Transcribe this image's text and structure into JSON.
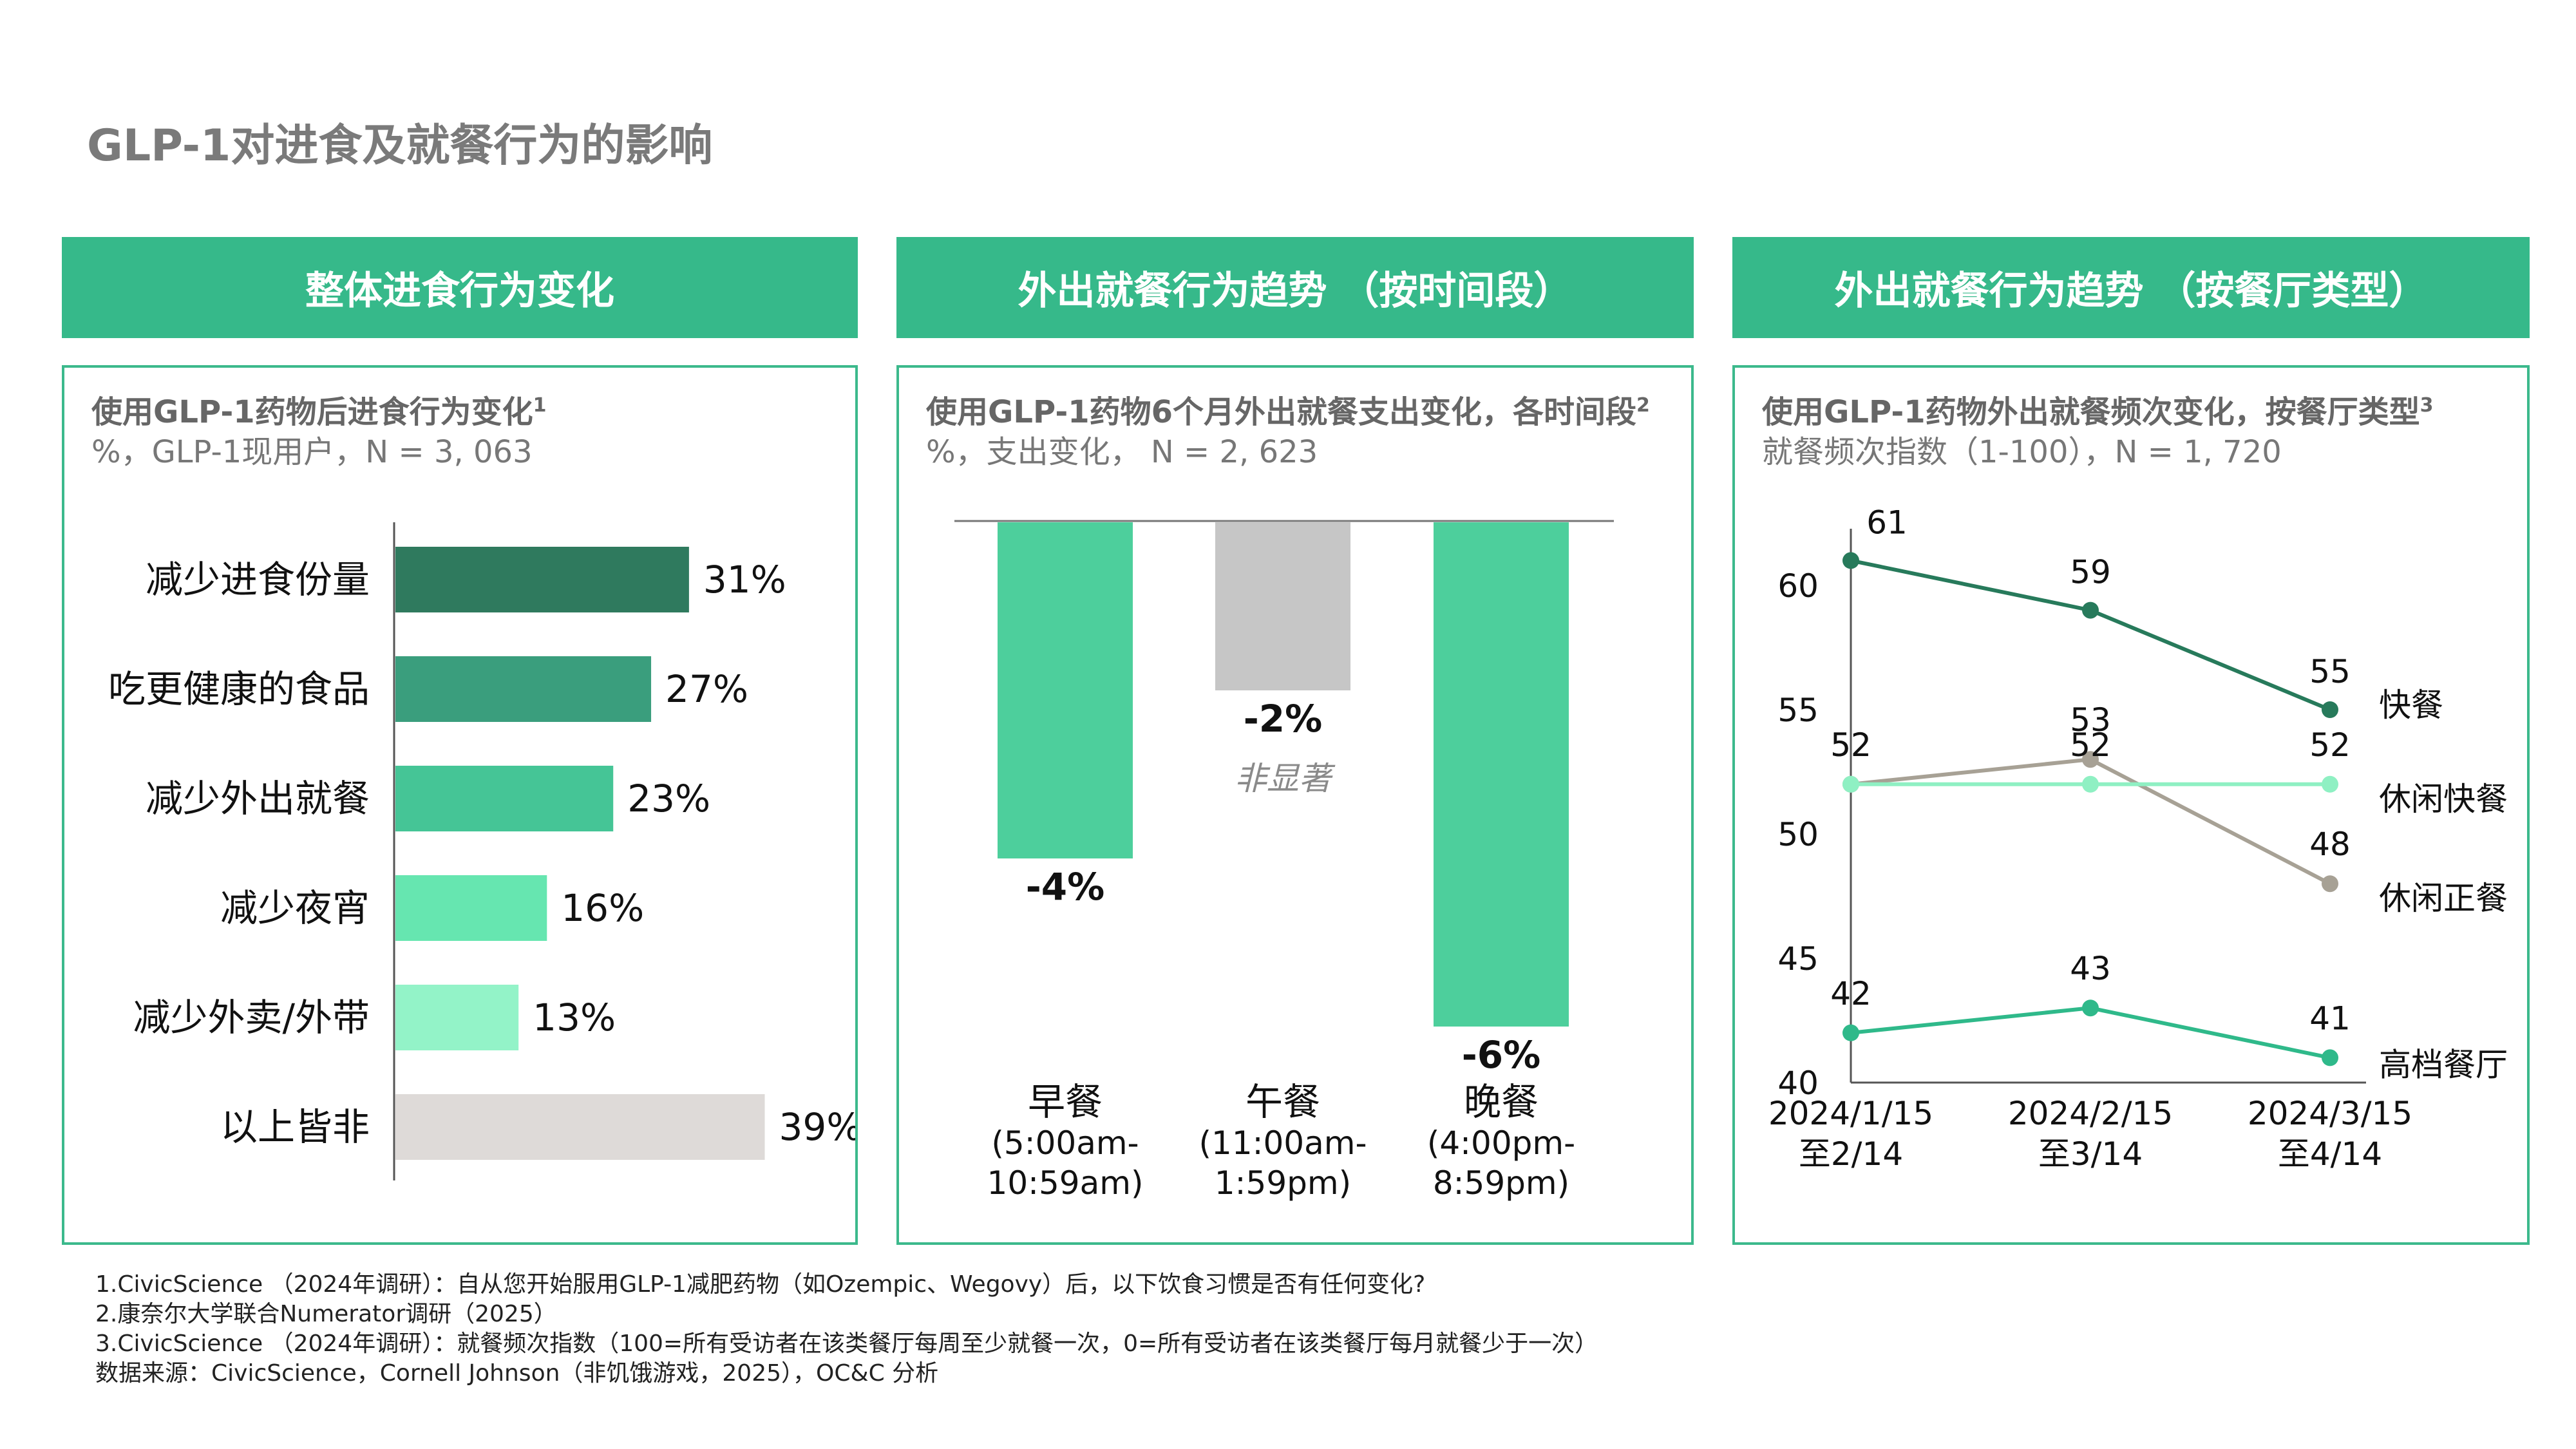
{
  "page_title": "GLP-1对进食及就餐行为的影响",
  "headers": [
    "整体进食行为变化",
    "外出就餐行为趋势 （按时间段）",
    "外出就餐行为趋势 （按餐厅类型）"
  ],
  "panels": [
    {
      "subtitle": "使用GLP-1药物后进食行为变化",
      "sup": "1",
      "subtitle2": "%，GLP-1现用户，N = 3, 063"
    },
    {
      "subtitle": "使用GLP-1药物6个月外出就餐支出变化，各时间段",
      "sup": "2",
      "subtitle2": "%，支出变化， N = 2, 623"
    },
    {
      "subtitle": "使用GLP-1药物外出就餐频次变化，按餐厅类型",
      "sup": "3",
      "subtitle2": "就餐频次指数（1-100），N = 1, 720"
    }
  ],
  "chart_data": [
    {
      "type": "bar",
      "orientation": "horizontal",
      "categories": [
        "减少进食份量",
        "吃更健康的食品",
        "减少外出就餐",
        "减少夜宵",
        "减少外卖/外带",
        "以上皆非"
      ],
      "values": [
        31,
        27,
        23,
        16,
        13,
        39
      ],
      "labels": [
        "31%",
        "27%",
        "23%",
        "16%",
        "13%",
        "39%"
      ],
      "colors": [
        "#2f7a5e",
        "#3a9e7d",
        "#45c596",
        "#66e6b0",
        "#93f3c8",
        "#dedad8"
      ]
    },
    {
      "type": "bar",
      "categories": [
        {
          "name": "早餐",
          "sub": [
            "(5:00am-",
            "10:59am)"
          ]
        },
        {
          "name": "午餐",
          "sub": [
            "(11:00am-",
            "1:59pm)"
          ]
        },
        {
          "name": "晚餐",
          "sub": [
            "(4:00pm-",
            "8:59pm)"
          ]
        }
      ],
      "values": [
        -4,
        -2,
        -6
      ],
      "labels": [
        "-4%",
        "-2%",
        "-6%"
      ],
      "colors": [
        "#4dcf9c",
        "#c6c6c6",
        "#4dcf9c"
      ],
      "annotation": "非显著",
      "ylim": [
        -6,
        0
      ]
    },
    {
      "type": "line",
      "categories": [
        [
          "2024/1/15",
          "至2/14"
        ],
        [
          "2024/2/15",
          "至3/14"
        ],
        [
          "2024/3/15",
          "至4/14"
        ]
      ],
      "yticks": [
        40,
        45,
        50,
        55,
        60
      ],
      "ylim": [
        40,
        62
      ],
      "series": [
        {
          "name": "快餐",
          "values": [
            61,
            59,
            55
          ],
          "color": "#277a5b"
        },
        {
          "name": "休闲快餐",
          "values": [
            52,
            52,
            52
          ],
          "color": "#8ff0c3"
        },
        {
          "name": "休闲正餐",
          "values": [
            52,
            53,
            48
          ],
          "color": "#a7a195"
        },
        {
          "name": "高档餐厅",
          "values": [
            42,
            43,
            41
          ],
          "color": "#2fb98a"
        }
      ]
    }
  ],
  "footnotes": [
    "1.CivicScience （2024年调研）：自从您开始服用GLP-1减肥药物（如Ozempic、Wegovy）后，以下饮食习惯是否有任何变化?",
    "2.康奈尔大学联合Numerator调研（2025）",
    "3.CivicScience （2024年调研）：就餐频次指数（100=所有受访者在该类餐厅每周至少就餐一次，0=所有受访者在该类餐厅每月就餐少于一次）",
    "数据来源：CivicScience，Cornell Johnson（非饥饿游戏，2025），OC&C 分析"
  ],
  "colors": {
    "header_green": "#36b98a",
    "panel_border": "#3cb98c",
    "title_gray": "#7a7a7a"
  }
}
